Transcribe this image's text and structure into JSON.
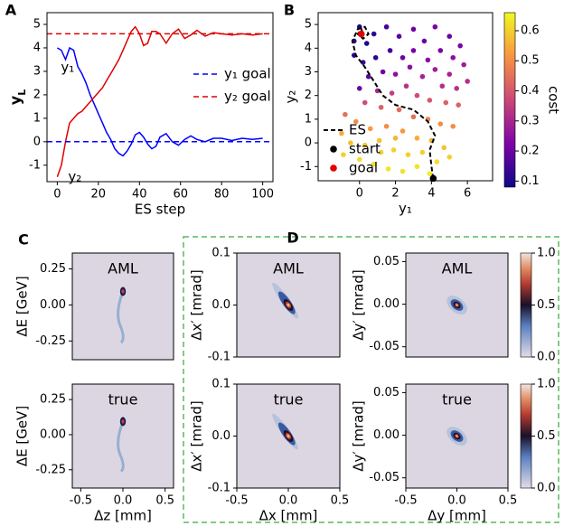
{
  "chart_data": [
    {
      "type": "line",
      "panel": "A",
      "xlabel": "ES step",
      "ylabel": "yL",
      "legend": "upper right",
      "xlim": [
        -5,
        105
      ],
      "xticks": [
        0,
        20,
        40,
        60,
        80,
        100
      ],
      "ylim": [
        -1.7,
        5.5
      ],
      "yticks": [
        -1,
        0,
        1,
        2,
        3,
        4,
        5
      ],
      "x": [
        0,
        2,
        4,
        6,
        8,
        10,
        12,
        14,
        16,
        18,
        20,
        22,
        24,
        26,
        28,
        30,
        32,
        34,
        36,
        38,
        40,
        42,
        44,
        46,
        48,
        50,
        53,
        56,
        59,
        62,
        65,
        68,
        72,
        76,
        80,
        85,
        90,
        95,
        100
      ],
      "series": [
        {
          "name": "y₁",
          "color": "#0000ff",
          "values": [
            4.0,
            3.9,
            3.5,
            4.0,
            3.9,
            3.2,
            2.9,
            2.5,
            2.0,
            1.6,
            1.2,
            0.8,
            0.4,
            0.1,
            -0.3,
            -0.5,
            -0.6,
            -0.4,
            -0.1,
            0.3,
            0.4,
            0.2,
            -0.1,
            -0.3,
            -0.2,
            0.2,
            0.35,
            0.0,
            -0.15,
            0.1,
            0.25,
            0.1,
            0.0,
            0.15,
            0.15,
            0.05,
            0.15,
            0.1,
            0.15
          ]
        },
        {
          "name": "y₂",
          "color": "#e00000",
          "values": [
            -1.5,
            -1.0,
            0.0,
            0.8,
            1.0,
            1.2,
            1.3,
            1.5,
            1.7,
            1.9,
            2.1,
            2.3,
            2.6,
            2.9,
            3.2,
            3.5,
            3.9,
            4.3,
            4.7,
            4.9,
            4.6,
            4.1,
            4.2,
            4.7,
            4.7,
            4.6,
            4.2,
            4.6,
            4.8,
            4.4,
            4.55,
            4.75,
            4.5,
            4.65,
            4.6,
            4.55,
            4.6,
            4.55,
            4.6
          ]
        },
        {
          "name": "y₁ goal",
          "color": "#0000ff",
          "dashed": true,
          "x": [
            -5,
            105
          ],
          "values": [
            0,
            0
          ]
        },
        {
          "name": "y₂ goal",
          "color": "#e00000",
          "dashed": true,
          "x": [
            -5,
            105
          ],
          "values": [
            4.6,
            4.6
          ]
        }
      ]
    },
    {
      "type": "scatter",
      "panel": "B",
      "xlabel": "y₁",
      "ylabel": "y₂",
      "legend": "lower left",
      "xlim": [
        -2.3,
        7.4
      ],
      "xticks": [
        0,
        2,
        4,
        6
      ],
      "ylim": [
        -1.6,
        5.5
      ],
      "yticks": [
        -1,
        0,
        1,
        2,
        3,
        4,
        5
      ],
      "x": [
        0.0,
        -0.3,
        0.4,
        0.8,
        1.5,
        2.2,
        3.0,
        3.6,
        4.2,
        5.0,
        5.6,
        5.2,
        4.5,
        3.8,
        3.0,
        2.4,
        1.7,
        0.9,
        0.2,
        -0.3,
        1.3,
        2.0,
        2.8,
        3.5,
        4.2,
        5.0,
        5.8,
        6.0,
        5.4,
        4.6,
        0.5,
        0.0,
        1.0,
        1.8,
        2.6,
        3.2,
        3.9,
        4.8,
        5.5,
        0.3,
        1.2,
        2.2,
        3.0,
        3.8,
        4.5,
        5.2,
        -0.8,
        -0.2,
        0.6,
        1.5,
        2.4,
        3.2,
        4.0,
        4.7,
        -1.0,
        -0.5,
        0.3,
        1.1,
        1.9,
        2.7,
        3.5,
        4.3,
        5.0,
        -0.9,
        0.0,
        0.8,
        1.6,
        2.4,
        3.2,
        3.9,
        1.2,
        2.0
      ],
      "values": [
        4.9,
        4.3,
        4.2,
        4.6,
        4.9,
        4.5,
        4.8,
        4.3,
        4.9,
        4.5,
        4.1,
        3.6,
        3.9,
        3.5,
        3.9,
        3.6,
        3.9,
        3.6,
        3.4,
        3.7,
        3.0,
        2.9,
        3.2,
        2.8,
        3.1,
        2.9,
        3.3,
        2.6,
        2.3,
        2.4,
        2.8,
        2.3,
        2.2,
        2.1,
        2.4,
        2.0,
        1.8,
        1.7,
        1.6,
        1.7,
        1.5,
        1.4,
        1.1,
        1.0,
        0.8,
        0.7,
        1.2,
        0.9,
        0.6,
        0.7,
        0.5,
        0.2,
        0.1,
        -0.2,
        0.4,
        0.0,
        -0.1,
        0.1,
        -0.3,
        -0.5,
        -0.4,
        -0.8,
        -0.6,
        -0.5,
        -0.7,
        -0.9,
        -1.1,
        -1.2,
        -1.0,
        -1.3,
        -0.4,
        0.2
      ],
      "cost": [
        0.1,
        0.12,
        0.1,
        0.12,
        0.15,
        0.18,
        0.2,
        0.2,
        0.22,
        0.2,
        0.22,
        0.25,
        0.22,
        0.25,
        0.22,
        0.2,
        0.15,
        0.12,
        0.14,
        0.12,
        0.2,
        0.25,
        0.25,
        0.3,
        0.28,
        0.3,
        0.28,
        0.32,
        0.33,
        0.32,
        0.18,
        0.2,
        0.3,
        0.35,
        0.33,
        0.38,
        0.4,
        0.42,
        0.42,
        0.38,
        0.42,
        0.44,
        0.45,
        0.48,
        0.5,
        0.5,
        0.45,
        0.5,
        0.52,
        0.5,
        0.52,
        0.55,
        0.55,
        0.58,
        0.55,
        0.58,
        0.58,
        0.58,
        0.6,
        0.6,
        0.6,
        0.62,
        0.6,
        0.6,
        0.62,
        0.62,
        0.63,
        0.63,
        0.63,
        0.64,
        0.6,
        0.56
      ],
      "colorbar": {
        "label": "cost",
        "clim": [
          0.08,
          0.66
        ],
        "ticks": [
          0.1,
          0.2,
          0.3,
          0.4,
          0.5,
          0.6
        ]
      },
      "path": {
        "name": "ES",
        "color": "#000000",
        "x": [
          4.1,
          4.0,
          3.9,
          4.2,
          3.8,
          3.0,
          2.0,
          1.3,
          0.8,
          0.3,
          -0.2,
          -0.4,
          -0.1,
          0.3,
          0.5,
          0.2,
          -0.1,
          0.1,
          0.2
        ],
        "values": [
          -1.5,
          -1.0,
          -0.3,
          0.3,
          0.9,
          1.4,
          1.6,
          2.0,
          2.6,
          3.2,
          3.7,
          4.3,
          4.8,
          4.9,
          4.6,
          4.4,
          4.6,
          4.8,
          4.6
        ]
      },
      "start": {
        "name": "start",
        "color": "#000000",
        "x": 4.1,
        "value": -1.5
      },
      "goal": {
        "name": "goal",
        "color": "#e00000",
        "x": 0.1,
        "value": 4.6
      }
    },
    {
      "type": "image",
      "panel": "C",
      "label": "AML",
      "ylabel": "ΔE [GeV]",
      "xlim": [
        -0.6,
        0.6
      ],
      "ylim": [
        -0.38,
        0.36
      ],
      "yticks": [
        0.25,
        {
          "value": 0,
          "label": "0.00"
        },
        -0.25
      ]
    },
    {
      "type": "image",
      "label": "true",
      "ylabel": "ΔE [GeV]",
      "xlabel": "Δz [mm]",
      "xlim": [
        -0.6,
        0.6
      ],
      "xticks": [
        -0.5,
        {
          "value": 0,
          "label": "0.0"
        },
        0.5
      ],
      "ylim": [
        -0.38,
        0.36
      ],
      "yticks": [
        0.25,
        {
          "value": 0,
          "label": "0.00"
        },
        -0.25
      ]
    },
    {
      "type": "image",
      "panel": "D",
      "label": "AML",
      "ylabel": "Δx′ [mrad]",
      "xlim": [
        -0.5,
        0.5
      ],
      "ylim": [
        -0.1,
        0.1
      ],
      "yticks": [
        0.1,
        {
          "value": 0,
          "label": "0.0"
        },
        -0.1
      ]
    },
    {
      "type": "image",
      "label": "true",
      "ylabel": "Δx′ [mrad]",
      "xlabel": "Δx [mm]",
      "xlim": [
        -0.5,
        0.5
      ],
      "xticks": [
        -0.5,
        {
          "value": 0,
          "label": "0.0"
        },
        0.5
      ],
      "ylim": [
        -0.1,
        0.1
      ],
      "yticks": [
        0.1,
        {
          "value": 0,
          "label": "0.0"
        },
        -0.1
      ]
    },
    {
      "type": "image",
      "label": "AML",
      "ylabel": "Δy′ [mrad]",
      "xlim": [
        -0.5,
        0.5
      ],
      "ylim": [
        -0.062,
        0.06
      ],
      "yticks": [
        0.05,
        {
          "value": 0,
          "label": "0.00"
        },
        -0.05
      ],
      "colorbar": {
        "clim": [
          0,
          1
        ],
        "ticks": [
          {
            "value": 0,
            "label": "0.0"
          },
          0.5,
          {
            "value": 1,
            "label": "1.0"
          }
        ]
      }
    },
    {
      "type": "image",
      "label": "true",
      "ylabel": "Δy′ [mrad]",
      "xlabel": "Δy [mm]",
      "xlim": [
        -0.5,
        0.5
      ],
      "xticks": [
        -0.5,
        {
          "value": 0,
          "label": "0.0"
        },
        0.5
      ],
      "ylim": [
        -0.062,
        0.06
      ],
      "yticks": [
        0.05,
        {
          "value": 0,
          "label": "0.00"
        },
        -0.05
      ],
      "colorbar": {
        "clim": [
          0,
          1
        ],
        "ticks": [
          {
            "value": 0,
            "label": "0.0"
          },
          0.5,
          {
            "value": 1,
            "label": "1.0"
          }
        ]
      }
    }
  ]
}
